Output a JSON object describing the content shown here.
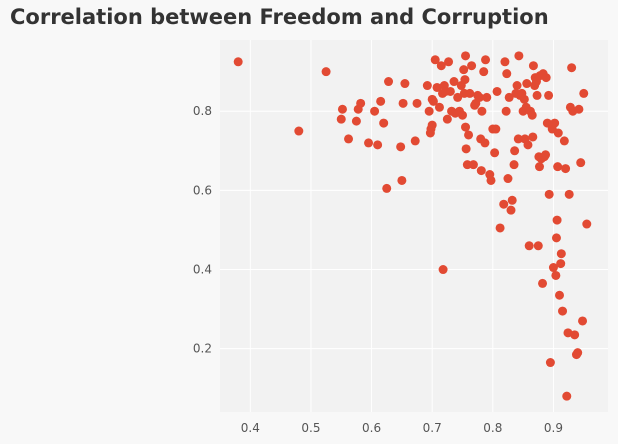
{
  "chart_data": {
    "type": "scatter",
    "title": "Correlation between Freedom and Corruption",
    "xlabel": "",
    "ylabel": "",
    "xlim": [
      0.35,
      0.99
    ],
    "ylim": [
      0.04,
      0.98
    ],
    "xticks": [
      "0.4",
      "0.5",
      "0.6",
      "0.7",
      "0.8",
      "0.9"
    ],
    "yticks": [
      "0.2",
      "0.4",
      "0.6",
      "0.8"
    ],
    "grid": true,
    "colors": {
      "point": "#e24a33",
      "background": "#f8f8f8",
      "plot_background": "#f2f2f2",
      "grid": "#ffffff",
      "title": "#333333",
      "tick": "#555555"
    },
    "series": [
      {
        "points": [
          [
            0.38,
            0.925
          ],
          [
            0.48,
            0.75
          ],
          [
            0.525,
            0.9
          ],
          [
            0.55,
            0.78
          ],
          [
            0.552,
            0.805
          ],
          [
            0.562,
            0.73
          ],
          [
            0.575,
            0.775
          ],
          [
            0.578,
            0.805
          ],
          [
            0.582,
            0.82
          ],
          [
            0.595,
            0.72
          ],
          [
            0.605,
            0.8
          ],
          [
            0.61,
            0.715
          ],
          [
            0.615,
            0.825
          ],
          [
            0.62,
            0.77
          ],
          [
            0.625,
            0.605
          ],
          [
            0.628,
            0.875
          ],
          [
            0.648,
            0.71
          ],
          [
            0.65,
            0.625
          ],
          [
            0.652,
            0.82
          ],
          [
            0.655,
            0.87
          ],
          [
            0.672,
            0.725
          ],
          [
            0.675,
            0.82
          ],
          [
            0.692,
            0.865
          ],
          [
            0.695,
            0.8
          ],
          [
            0.697,
            0.745
          ],
          [
            0.698,
            0.755
          ],
          [
            0.7,
            0.765
          ],
          [
            0.7,
            0.83
          ],
          [
            0.702,
            0.825
          ],
          [
            0.705,
            0.93
          ],
          [
            0.708,
            0.86
          ],
          [
            0.712,
            0.81
          ],
          [
            0.715,
            0.915
          ],
          [
            0.717,
            0.845
          ],
          [
            0.718,
            0.4
          ],
          [
            0.72,
            0.865
          ],
          [
            0.722,
            0.85
          ],
          [
            0.725,
            0.78
          ],
          [
            0.727,
            0.925
          ],
          [
            0.73,
            0.85
          ],
          [
            0.732,
            0.8
          ],
          [
            0.736,
            0.875
          ],
          [
            0.738,
            0.795
          ],
          [
            0.742,
            0.835
          ],
          [
            0.745,
            0.8
          ],
          [
            0.748,
            0.865
          ],
          [
            0.75,
            0.79
          ],
          [
            0.752,
            0.905
          ],
          [
            0.753,
            0.845
          ],
          [
            0.754,
            0.88
          ],
          [
            0.755,
            0.94
          ],
          [
            0.755,
            0.76
          ],
          [
            0.756,
            0.705
          ],
          [
            0.758,
            0.665
          ],
          [
            0.76,
            0.74
          ],
          [
            0.762,
            0.845
          ],
          [
            0.765,
            0.915
          ],
          [
            0.768,
            0.665
          ],
          [
            0.77,
            0.815
          ],
          [
            0.772,
            0.82
          ],
          [
            0.775,
            0.84
          ],
          [
            0.778,
            0.835
          ],
          [
            0.78,
            0.73
          ],
          [
            0.781,
            0.65
          ],
          [
            0.782,
            0.8
          ],
          [
            0.785,
            0.9
          ],
          [
            0.787,
            0.72
          ],
          [
            0.788,
            0.93
          ],
          [
            0.79,
            0.835
          ],
          [
            0.795,
            0.64
          ],
          [
            0.797,
            0.625
          ],
          [
            0.8,
            0.755
          ],
          [
            0.803,
            0.695
          ],
          [
            0.805,
            0.755
          ],
          [
            0.807,
            0.85
          ],
          [
            0.812,
            0.505
          ],
          [
            0.818,
            0.565
          ],
          [
            0.82,
            0.925
          ],
          [
            0.822,
            0.8
          ],
          [
            0.823,
            0.895
          ],
          [
            0.825,
            0.63
          ],
          [
            0.827,
            0.835
          ],
          [
            0.83,
            0.55
          ],
          [
            0.832,
            0.575
          ],
          [
            0.835,
            0.665
          ],
          [
            0.836,
            0.7
          ],
          [
            0.838,
            0.845
          ],
          [
            0.84,
            0.865
          ],
          [
            0.842,
            0.73
          ],
          [
            0.843,
            0.94
          ],
          [
            0.845,
            0.84
          ],
          [
            0.848,
            0.845
          ],
          [
            0.85,
            0.8
          ],
          [
            0.852,
            0.83
          ],
          [
            0.853,
            0.73
          ],
          [
            0.855,
            0.81
          ],
          [
            0.856,
            0.87
          ],
          [
            0.858,
            0.715
          ],
          [
            0.86,
            0.46
          ],
          [
            0.862,
            0.8
          ],
          [
            0.865,
            0.79
          ],
          [
            0.866,
            0.735
          ],
          [
            0.867,
            0.915
          ],
          [
            0.869,
            0.865
          ],
          [
            0.87,
            0.885
          ],
          [
            0.872,
            0.875
          ],
          [
            0.873,
            0.84
          ],
          [
            0.875,
            0.46
          ],
          [
            0.876,
            0.685
          ],
          [
            0.877,
            0.66
          ],
          [
            0.878,
            0.89
          ],
          [
            0.88,
            0.68
          ],
          [
            0.882,
            0.365
          ],
          [
            0.883,
            0.895
          ],
          [
            0.885,
            0.685
          ],
          [
            0.887,
            0.69
          ],
          [
            0.888,
            0.885
          ],
          [
            0.89,
            0.77
          ],
          [
            0.892,
            0.84
          ],
          [
            0.893,
            0.59
          ],
          [
            0.895,
            0.165
          ],
          [
            0.898,
            0.755
          ],
          [
            0.9,
            0.405
          ],
          [
            0.902,
            0.77
          ],
          [
            0.904,
            0.385
          ],
          [
            0.905,
            0.48
          ],
          [
            0.906,
            0.525
          ],
          [
            0.907,
            0.66
          ],
          [
            0.908,
            0.745
          ],
          [
            0.91,
            0.335
          ],
          [
            0.912,
            0.415
          ],
          [
            0.913,
            0.44
          ],
          [
            0.915,
            0.295
          ],
          [
            0.918,
            0.725
          ],
          [
            0.92,
            0.655
          ],
          [
            0.922,
            0.08
          ],
          [
            0.924,
            0.24
          ],
          [
            0.926,
            0.59
          ],
          [
            0.928,
            0.81
          ],
          [
            0.93,
            0.91
          ],
          [
            0.932,
            0.8
          ],
          [
            0.935,
            0.235
          ],
          [
            0.938,
            0.185
          ],
          [
            0.94,
            0.19
          ],
          [
            0.942,
            0.805
          ],
          [
            0.945,
            0.67
          ],
          [
            0.948,
            0.27
          ],
          [
            0.95,
            0.845
          ],
          [
            0.955,
            0.515
          ]
        ]
      }
    ]
  }
}
